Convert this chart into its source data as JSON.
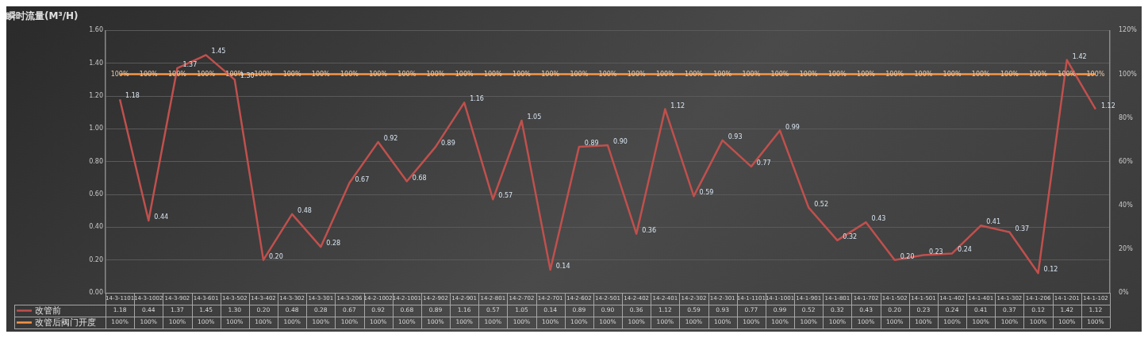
{
  "chart_data": {
    "type": "line",
    "title": "瞬时流量(M³/H)",
    "categories": [
      "14-3-1101",
      "14-3-1002",
      "14-3-902",
      "14-3-601",
      "14-3-502",
      "14-3-402",
      "14-3-302",
      "14-3-301",
      "14-3-206",
      "14-2-1002",
      "14-2-1001",
      "14-2-902",
      "14-2-901",
      "14-2-801",
      "14-2-702",
      "14-2-701",
      "14-2-602",
      "14-2-501",
      "14-2-402",
      "14-2-401",
      "14-2-302",
      "14-2-301",
      "14-1-1101",
      "14-1-1001",
      "14-1-901",
      "14-1-801",
      "14-1-702",
      "14-1-502",
      "14-1-501",
      "14-1-402",
      "14-1-401",
      "14-1-302",
      "14-1-206",
      "14-1-201",
      "14-1-102"
    ],
    "series": [
      {
        "name": "改管前",
        "color": "#c0504d",
        "values": [
          1.18,
          0.44,
          1.37,
          1.45,
          1.3,
          0.2,
          0.48,
          0.28,
          0.67,
          0.92,
          0.68,
          0.89,
          1.16,
          0.57,
          1.05,
          0.14,
          0.89,
          0.9,
          0.36,
          1.12,
          0.59,
          0.93,
          0.77,
          0.99,
          0.52,
          0.32,
          0.43,
          0.2,
          0.23,
          0.24,
          0.41,
          0.37,
          0.12,
          1.42,
          1.12
        ],
        "value_labels": [
          "1.18",
          "0.44",
          "1.37",
          "1.45",
          "1.30",
          "0.20",
          "0.48",
          "0.28",
          "0.67",
          "0.92",
          "0.68",
          "0.89",
          "1.16",
          "0.57",
          "1.05",
          "0.14",
          "0.89",
          "0.90",
          "0.36",
          "1.12",
          "0.59",
          "0.93",
          "0.77",
          "0.99",
          "0.52",
          "0.32",
          "0.43",
          "0.20",
          "0.23",
          "0.24",
          "0.41",
          "0.37",
          "0.12",
          "1.42",
          "1.12"
        ]
      },
      {
        "name": "改管后阀门开度",
        "color": "#f79646",
        "axis": "y2",
        "values": [
          100,
          100,
          100,
          100,
          100,
          100,
          100,
          100,
          100,
          100,
          100,
          100,
          100,
          100,
          100,
          100,
          100,
          100,
          100,
          100,
          100,
          100,
          100,
          100,
          100,
          100,
          100,
          100,
          100,
          100,
          100,
          100,
          100,
          100,
          100
        ],
        "value_labels": [
          "100%",
          "100%",
          "100%",
          "100%",
          "100%",
          "100%",
          "100%",
          "100%",
          "100%",
          "100%",
          "100%",
          "100%",
          "100%",
          "100%",
          "100%",
          "100%",
          "100%",
          "100%",
          "100%",
          "100%",
          "100%",
          "100%",
          "100%",
          "100%",
          "100%",
          "100%",
          "100%",
          "100%",
          "100%",
          "100%",
          "100%",
          "100%",
          "100%",
          "100%",
          "100%"
        ]
      }
    ],
    "ylim": [
      0,
      1.6
    ],
    "yticks": [
      {
        "value": 0,
        "label": "0.00"
      },
      {
        "value": 0.2,
        "label": "0.20"
      },
      {
        "value": 0.4,
        "label": "0.40"
      },
      {
        "value": 0.6,
        "label": "0.60"
      },
      {
        "value": 0.8,
        "label": "0.80"
      },
      {
        "value": 1,
        "label": "1.00"
      },
      {
        "value": 1.2,
        "label": "1.20"
      },
      {
        "value": 1.4,
        "label": "1.40"
      },
      {
        "value": 1.6,
        "label": "1.60"
      }
    ],
    "y2lim": [
      0,
      120
    ],
    "y2ticks": [
      {
        "value": 0,
        "label": "0%"
      },
      {
        "value": 20,
        "label": "20%"
      },
      {
        "value": 40,
        "label": "40%"
      },
      {
        "value": 60,
        "label": "60%"
      },
      {
        "value": 80,
        "label": "80%"
      },
      {
        "value": 100,
        "label": "100%"
      },
      {
        "value": 120,
        "label": "120%"
      }
    ],
    "grid": "y",
    "legend": "bottom",
    "marker": "none",
    "line_style": "solid"
  }
}
